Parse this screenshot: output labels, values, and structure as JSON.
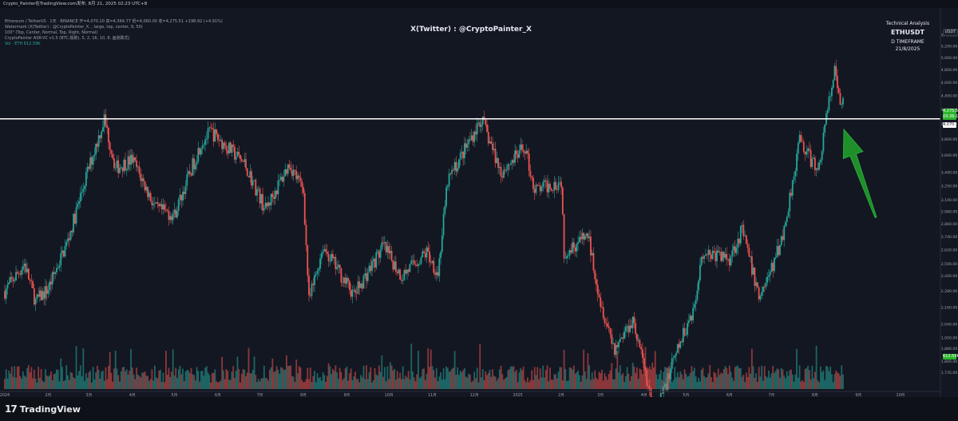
{
  "topbar": {
    "text": "Crypto_Painter在TradingView.com发布, 8月 21, 2025 02:23 UTC+8"
  },
  "legend": {
    "line1": "Ethereum / TetherUS · 1天 · BINANCE  开=4,070.10 高=4,364.77 低=4,060.00 收=4,275.51 +198.92 (+4.91%)",
    "line2": "Watermark (X(Twitter) : @CryptoPainter_X, , large, top, center, 9, 50)",
    "line3": "100\" (Top, Center, Normal, Top, Right, Normal)",
    "line4": "CryptoPainter ASR-VC v1.5 (BTC,极致), 5, 2, 16, 10, 8, 画涨跌式)",
    "line5": "Vol · ETH  612.59K"
  },
  "watermark": {
    "text": "X(Twitter) : @CryptoPainter_X"
  },
  "technical_analysis": {
    "label": "Technical Analysis",
    "symbol": "ETHUSDT",
    "timeframe": "D TIMEFRAME",
    "date": "21/8/2025"
  },
  "axis": {
    "currency": "USDT",
    "price_tag": "4,275.51",
    "price_tag_sub": "03:36:17",
    "level_tag": "4,070.10",
    "volume_tag": "612.59K"
  },
  "footer": {
    "brand": "TradingView"
  },
  "colors": {
    "up": "#26a69a",
    "down": "#ef5350",
    "level": "#ffffff",
    "arrow": "#1f8f2a",
    "bg": "#131722"
  },
  "chart_data": {
    "type": "candlestick",
    "title": "",
    "y_scale": "log",
    "ylim": [
      1640,
      5600
    ],
    "y_ticks": [
      1735,
      1800,
      1880,
      1950,
      2040,
      2160,
      2280,
      2400,
      2500,
      2620,
      2740,
      2860,
      2980,
      3100,
      3250,
      3400,
      3600,
      3800,
      4000,
      4200,
      4400,
      4600,
      4800,
      5000,
      5200,
      5400
    ],
    "y_tick_labels": [
      "1,735.00",
      "1,800.00",
      "1,880.00",
      "1,950.00",
      "2,040.00",
      "2,160.00",
      "2,280.00",
      "2,400.00",
      "2,500.00",
      "2,620.00",
      "2,740.00",
      "2,860.00",
      "2,980.00",
      "3,100.00",
      "3,250.00",
      "3,400.00",
      "3,600.00",
      "3,800.00",
      "4,000.00",
      "4,200.00",
      "4,400.00",
      "4,600.00",
      "4,800.00",
      "5,000.00",
      "5,200.00",
      "5,400.00"
    ],
    "x_labels": [
      "2024",
      "2月",
      "3月",
      "4月",
      "5月",
      "6月",
      "7月",
      "8月",
      "9月",
      "10月",
      "11月",
      "12月",
      "2025",
      "2月",
      "3月",
      "4月",
      "5月",
      "6月",
      "7月",
      "8月",
      "9月",
      "10月"
    ],
    "x_label_dates": [
      "2024-01-01",
      "2024-02-01",
      "2024-03-01",
      "2024-04-01",
      "2024-05-01",
      "2024-06-01",
      "2024-07-01",
      "2024-08-01",
      "2024-09-01",
      "2024-10-01",
      "2024-11-01",
      "2024-12-01",
      "2025-01-01",
      "2025-02-01",
      "2025-03-01",
      "2025-04-01",
      "2025-05-01",
      "2025-06-01",
      "2025-07-01",
      "2025-08-01",
      "2025-09-01",
      "2025-10-01"
    ],
    "date_range": [
      "2024-01-01",
      "2025-08-21"
    ],
    "price_path": [
      [
        "2024-01-01",
        2280
      ],
      [
        "2024-01-15",
        2500
      ],
      [
        "2024-01-23",
        2200
      ],
      [
        "2024-02-01",
        2300
      ],
      [
        "2024-02-15",
        2700
      ],
      [
        "2024-02-28",
        3350
      ],
      [
        "2024-03-12",
        4070
      ],
      [
        "2024-03-20",
        3450
      ],
      [
        "2024-04-01",
        3550
      ],
      [
        "2024-04-18",
        3000
      ],
      [
        "2024-05-01",
        2950
      ],
      [
        "2024-05-20",
        3750
      ],
      [
        "2024-05-27",
        3900
      ],
      [
        "2024-06-20",
        3500
      ],
      [
        "2024-07-05",
        3000
      ],
      [
        "2024-07-22",
        3500
      ],
      [
        "2024-08-01",
        3200
      ],
      [
        "2024-08-05",
        2200
      ],
      [
        "2024-08-15",
        2650
      ],
      [
        "2024-09-06",
        2250
      ],
      [
        "2024-09-27",
        2650
      ],
      [
        "2024-10-10",
        2400
      ],
      [
        "2024-10-28",
        2600
      ],
      [
        "2024-11-05",
        2420
      ],
      [
        "2024-11-12",
        3300
      ],
      [
        "2024-12-06",
        4070
      ],
      [
        "2024-12-20",
        3400
      ],
      [
        "2025-01-06",
        3700
      ],
      [
        "2025-01-13",
        3200
      ],
      [
        "2025-02-01",
        3300
      ],
      [
        "2025-02-03",
        2600
      ],
      [
        "2025-02-20",
        2750
      ],
      [
        "2025-03-01",
        2200
      ],
      [
        "2025-03-11",
        1880
      ],
      [
        "2025-03-24",
        2080
      ],
      [
        "2025-04-09",
        1500
      ],
      [
        "2025-04-22",
        1800
      ],
      [
        "2025-05-08",
        2200
      ],
      [
        "2025-05-12",
        2600
      ],
      [
        "2025-06-01",
        2550
      ],
      [
        "2025-06-10",
        2800
      ],
      [
        "2025-06-22",
        2240
      ],
      [
        "2025-07-01",
        2450
      ],
      [
        "2025-07-10",
        2800
      ],
      [
        "2025-07-21",
        3800
      ],
      [
        "2025-08-03",
        3400
      ],
      [
        "2025-08-10",
        4200
      ],
      [
        "2025-08-15",
        4780
      ],
      [
        "2025-08-19",
        4250
      ],
      [
        "2025-08-21",
        4275
      ]
    ],
    "horizontal_level": 4070.1,
    "annotations": [
      {
        "type": "arrow",
        "color": "green",
        "points_to": "2025-08-21 near 4,070 level"
      }
    ],
    "volume": {
      "series": "Vol · ETH",
      "last": "612.59K"
    }
  }
}
